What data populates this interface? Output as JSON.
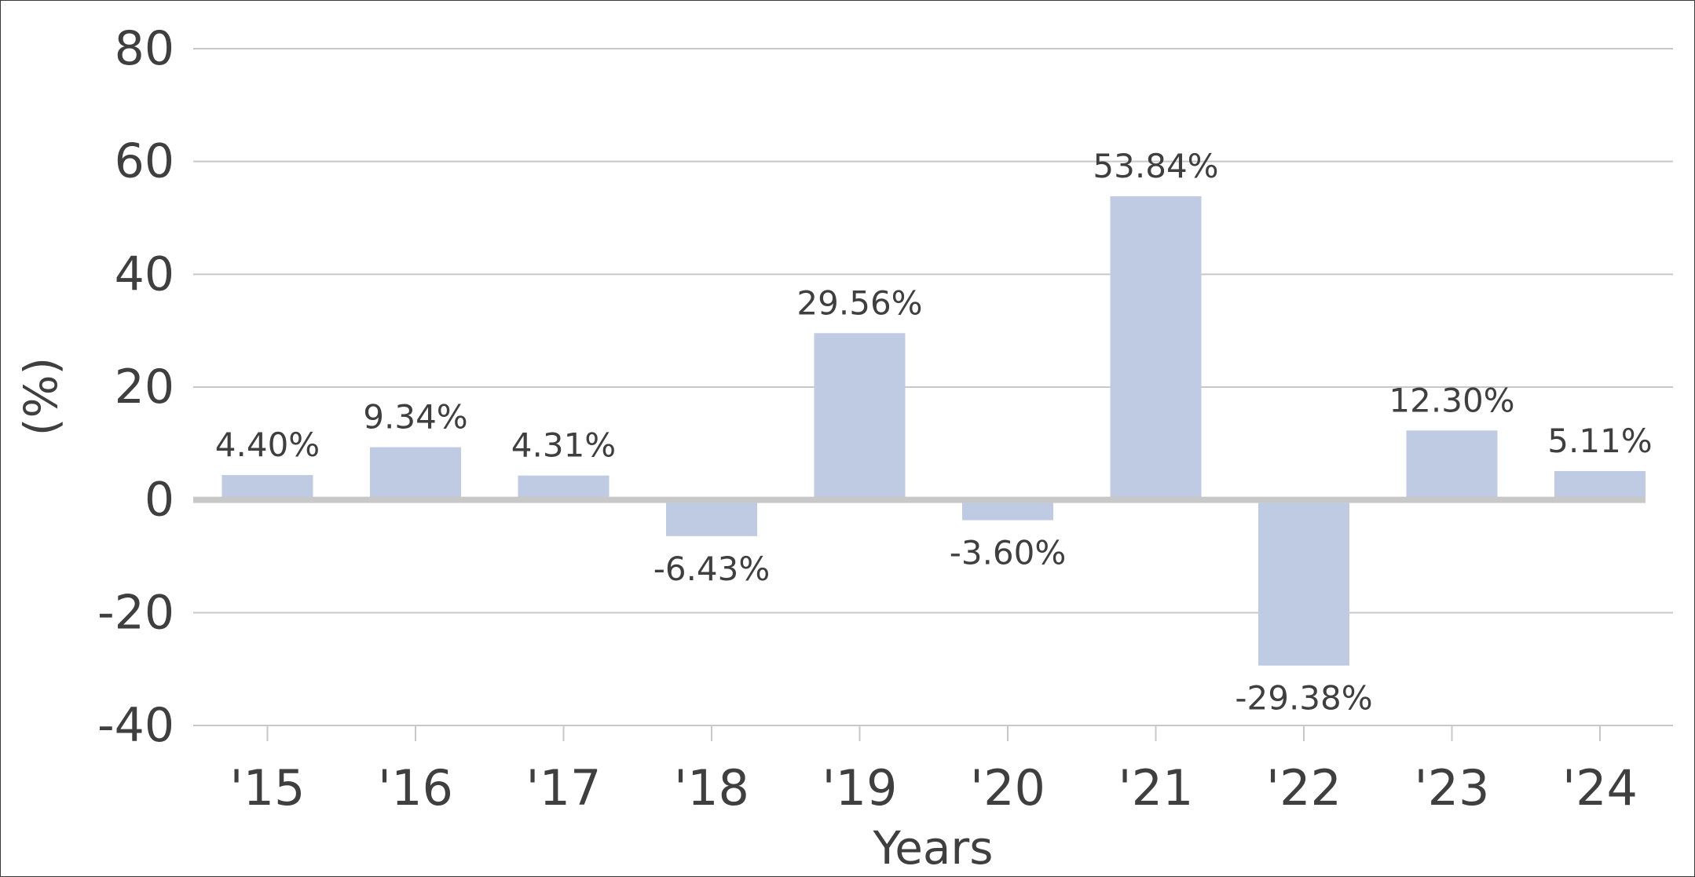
{
  "chart_data": {
    "type": "bar",
    "categories": [
      "'15",
      "'16",
      "'17",
      "'18",
      "'19",
      "'20",
      "'21",
      "'22",
      "'23",
      "'24"
    ],
    "values": [
      4.4,
      9.34,
      4.31,
      -6.43,
      29.56,
      -3.6,
      53.84,
      -29.38,
      12.3,
      5.11
    ],
    "data_labels": [
      "4.40%",
      "9.34%",
      "4.31%",
      "-6.43%",
      "29.56%",
      "-3.60%",
      "53.84%",
      "-29.38%",
      "12.30%",
      "5.11%"
    ],
    "xlabel": "Years",
    "ylabel": "(%)",
    "ylim": [
      -40,
      80
    ],
    "yticks": [
      "80",
      "60",
      "40",
      "20",
      "0",
      "-20",
      "-40"
    ],
    "grid": true,
    "bar_color": "#bfcbe2"
  }
}
